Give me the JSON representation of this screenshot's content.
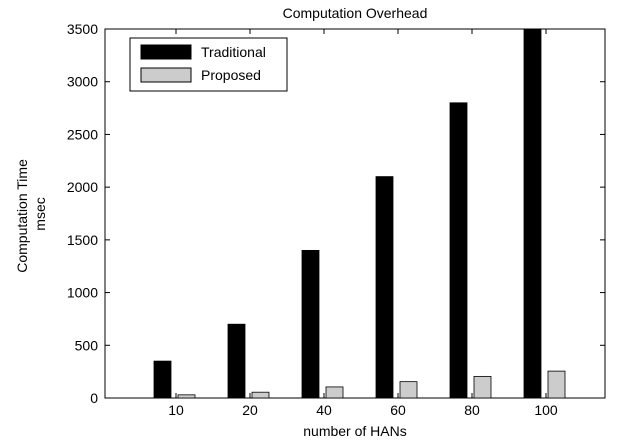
{
  "chart_data": {
    "type": "bar",
    "title": "Computation Overhead",
    "xlabel": "number of HANs",
    "ylabel": [
      "Computation Time",
      "msec"
    ],
    "categories": [
      "10",
      "20",
      "40",
      "60",
      "80",
      "100"
    ],
    "series": [
      {
        "name": "Traditional",
        "values": [
          350,
          700,
          1400,
          2100,
          2800,
          3500
        ],
        "color": "#000000"
      },
      {
        "name": "Proposed",
        "values": [
          30,
          55,
          105,
          155,
          205,
          255
        ],
        "color": "#cccccc"
      }
    ],
    "ylim": [
      0,
      3500
    ],
    "yticks": [
      0,
      500,
      1000,
      1500,
      2000,
      2500,
      3000,
      3500
    ],
    "grid": false,
    "legend_position": "top-left"
  }
}
